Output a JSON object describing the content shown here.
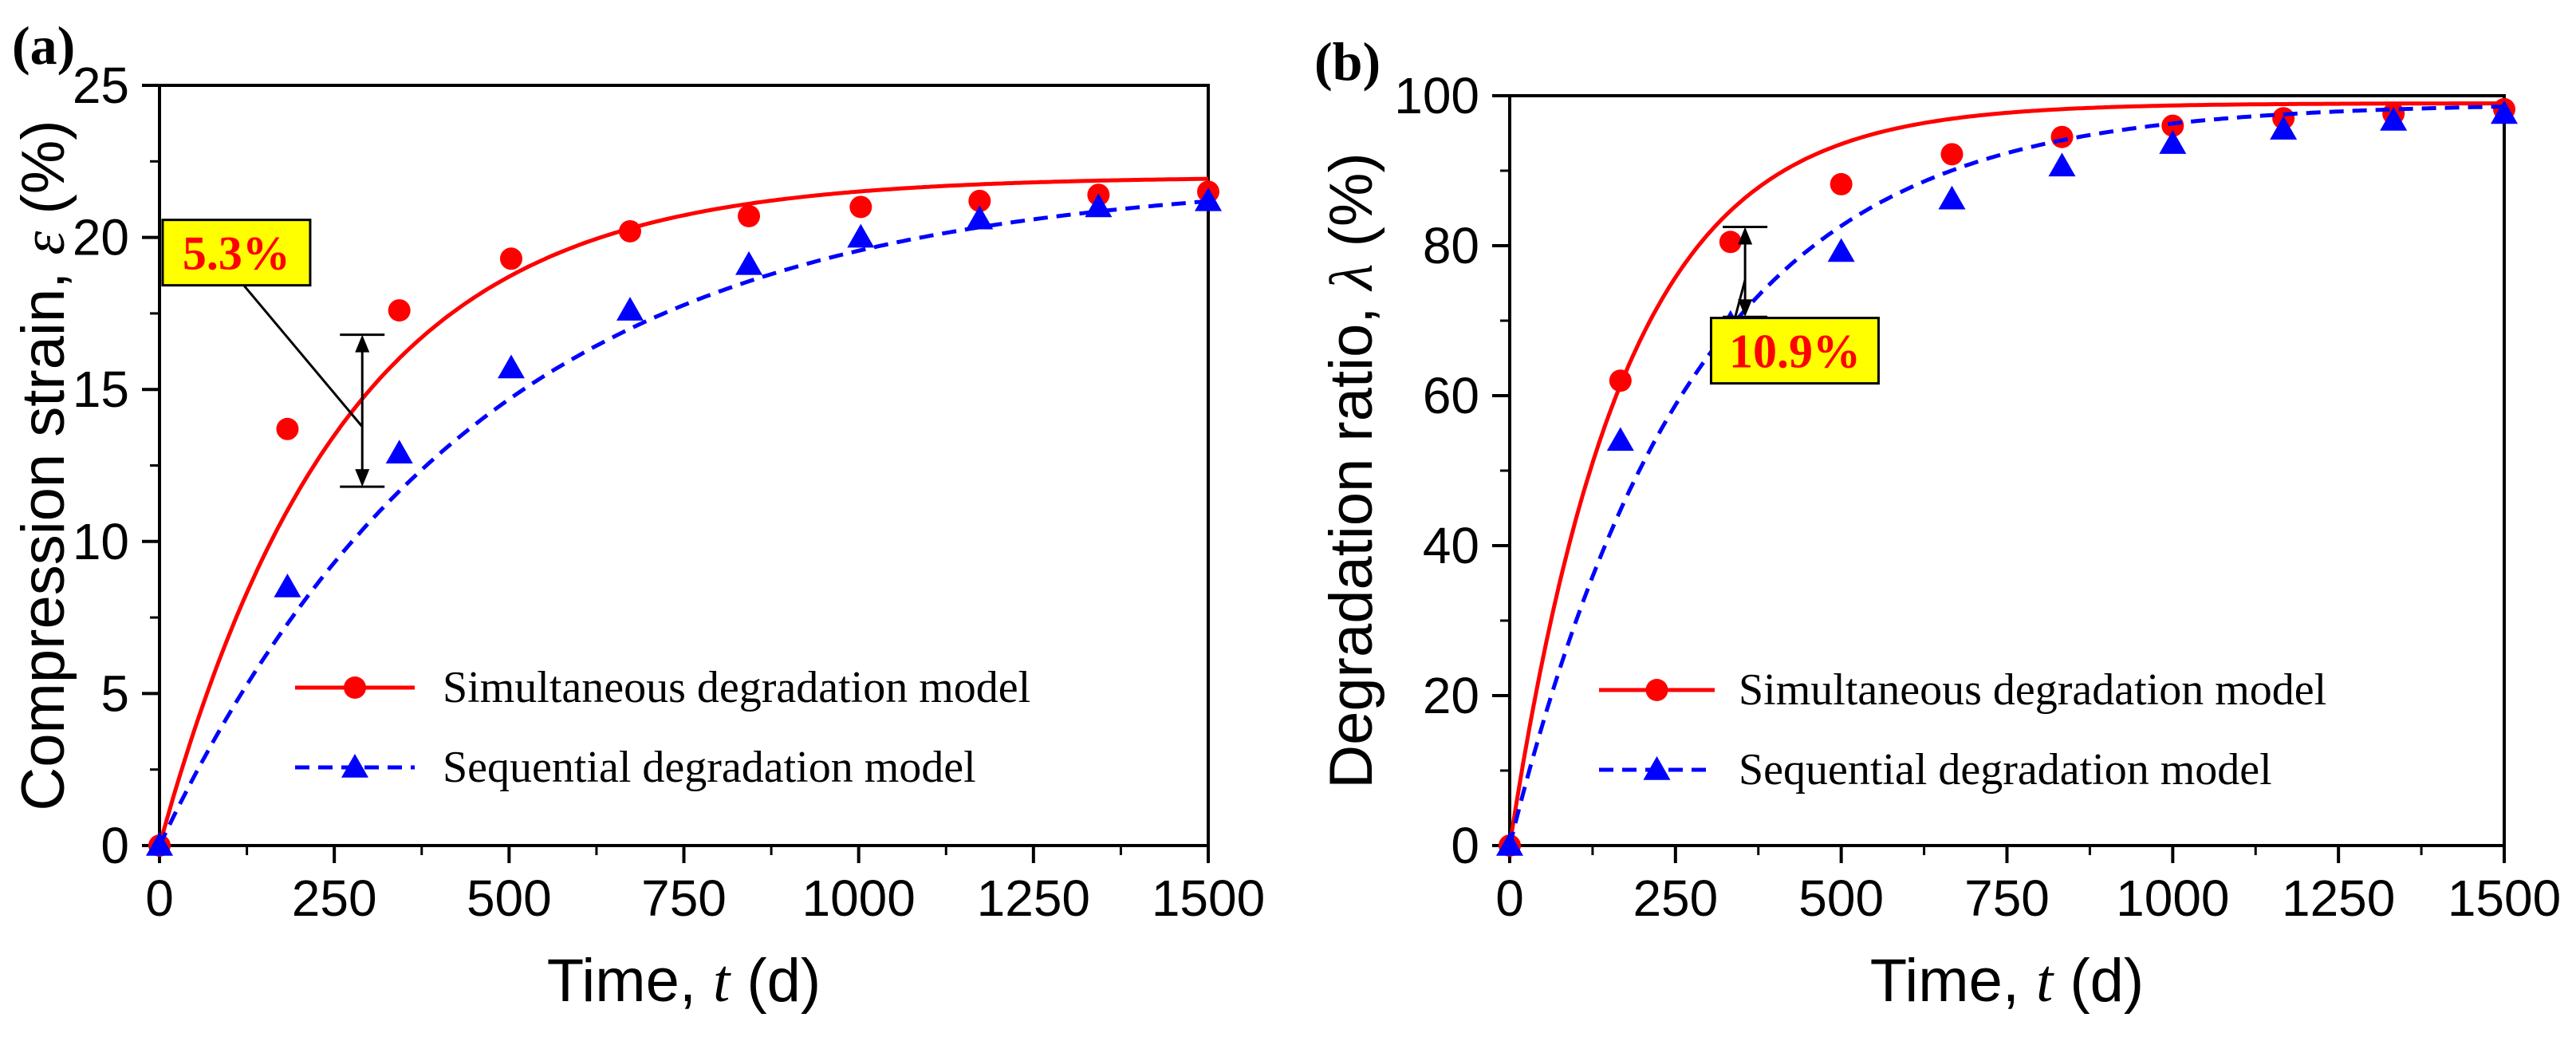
{
  "chart_data": [
    {
      "type": "line",
      "panel_label": "(a)",
      "xlabel_main": "Time, ",
      "xlabel_var": "t",
      "xlabel_unit": " (d)",
      "ylabel_main": "Compression strain, ",
      "ylabel_var": "ε",
      "ylabel_unit": " (%)",
      "xlim": [
        0,
        1500
      ],
      "ylim": [
        0,
        25
      ],
      "xticks": [
        "0",
        "250",
        "500",
        "750",
        "1000",
        "1250",
        "1500"
      ],
      "yticks": [
        "0",
        "5",
        "10",
        "15",
        "20",
        "25"
      ],
      "x_tick_values": [
        0,
        250,
        500,
        750,
        1000,
        1250,
        1500
      ],
      "y_tick_values": [
        0,
        5,
        10,
        15,
        20,
        25
      ],
      "legend_position": "lower-right",
      "series": [
        {
          "name": "Simultaneous degradation model",
          "color": "#ff0000",
          "line_style": "solid",
          "marker": "circle",
          "curve": {
            "asymptote": 22.0,
            "rate": 0.0038
          },
          "markers": {
            "x": [
              0,
              183,
              343,
              503,
              673,
              843,
              1003,
              1173,
              1343,
              1500
            ],
            "y": [
              0,
              13.7,
              17.6,
              19.3,
              20.2,
              20.7,
              21.0,
              21.2,
              21.4,
              21.5
            ]
          }
        },
        {
          "name": "Sequential  degradation model",
          "color": "#0000ff",
          "line_style": "dashed",
          "marker": "triangle",
          "curve": {
            "asymptote": 22.0,
            "rate": 0.0022
          },
          "markers": {
            "x": [
              0,
              183,
              343,
              503,
              673,
              843,
              1003,
              1173,
              1343,
              1500
            ],
            "y": [
              0,
              8.5,
              12.9,
              15.7,
              17.6,
              19.1,
              20.0,
              20.6,
              21.0,
              21.2
            ]
          }
        }
      ],
      "annotation": {
        "text": "5.3%",
        "x": 290,
        "y_top": 16.8,
        "y_bottom": 11.8,
        "label_x": 110,
        "label_y": 19.5
      }
    },
    {
      "type": "line",
      "panel_label": "(b)",
      "xlabel_main": "Time, ",
      "xlabel_var": "t",
      "xlabel_unit": " (d)",
      "ylabel_main": "Degradation ratio, ",
      "ylabel_var": "λ",
      "ylabel_unit": " (%)",
      "xlim": [
        0,
        1500
      ],
      "ylim": [
        0,
        100
      ],
      "xticks": [
        "0",
        "250",
        "500",
        "750",
        "1000",
        "1250",
        "1500"
      ],
      "yticks": [
        "0",
        "20",
        "40",
        "60",
        "80",
        "100"
      ],
      "x_tick_values": [
        0,
        250,
        500,
        750,
        1000,
        1250,
        1500
      ],
      "y_tick_values": [
        0,
        20,
        40,
        60,
        80,
        100
      ],
      "legend_position": "lower-right",
      "series": [
        {
          "name": "Simultaneous degradation model",
          "color": "#ff0000",
          "line_style": "solid",
          "marker": "circle",
          "curve": {
            "asymptote": 99.0,
            "rate": 0.0058
          },
          "markers": {
            "x": [
              0,
              167,
              333,
              500,
              667,
              833,
              1000,
              1167,
              1333,
              1500
            ],
            "y": [
              0,
              62,
              80.5,
              88.2,
              92.2,
              94.5,
              96.0,
              97.0,
              97.6,
              98.2
            ]
          }
        },
        {
          "name": "Sequential degradation model",
          "color": "#0000ff",
          "line_style": "dashed",
          "marker": "triangle",
          "curve": {
            "asymptote": 99.0,
            "rate": 0.0036
          },
          "markers": {
            "x": [
              0,
              167,
              333,
              500,
              667,
              833,
              1000,
              1167,
              1333,
              1500
            ],
            "y": [
              0,
              54,
              69.6,
              79.2,
              86.2,
              90.6,
              93.6,
              95.5,
              96.7,
              97.6
            ]
          }
        }
      ],
      "annotation": {
        "text": "10.9%",
        "x": 355,
        "y_top": 82.5,
        "y_bottom": 70.5,
        "label_x": 430,
        "label_y": 66
      }
    }
  ]
}
